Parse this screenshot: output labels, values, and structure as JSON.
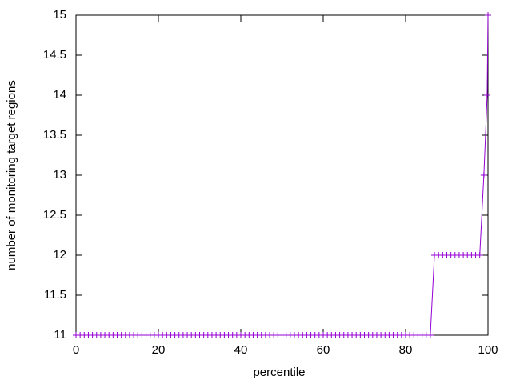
{
  "chart_data": {
    "type": "line",
    "xlabel": "percentile",
    "ylabel": "number of monitoring target regions",
    "x": [
      0,
      1,
      2,
      3,
      4,
      5,
      6,
      7,
      8,
      9,
      10,
      11,
      12,
      13,
      14,
      15,
      16,
      17,
      18,
      19,
      20,
      21,
      22,
      23,
      24,
      25,
      26,
      27,
      28,
      29,
      30,
      31,
      32,
      33,
      34,
      35,
      36,
      37,
      38,
      39,
      40,
      41,
      42,
      43,
      44,
      45,
      46,
      47,
      48,
      49,
      50,
      51,
      52,
      53,
      54,
      55,
      56,
      57,
      58,
      59,
      60,
      61,
      62,
      63,
      64,
      65,
      66,
      67,
      68,
      69,
      70,
      71,
      72,
      73,
      74,
      75,
      76,
      77,
      78,
      79,
      80,
      81,
      82,
      83,
      84,
      85,
      86,
      87,
      88,
      89,
      90,
      91,
      92,
      93,
      94,
      95,
      96,
      97,
      98,
      99,
      99.8,
      100
    ],
    "series": [
      {
        "color": "#9400d3",
        "values": [
          11,
          11,
          11,
          11,
          11,
          11,
          11,
          11,
          11,
          11,
          11,
          11,
          11,
          11,
          11,
          11,
          11,
          11,
          11,
          11,
          11,
          11,
          11,
          11,
          11,
          11,
          11,
          11,
          11,
          11,
          11,
          11,
          11,
          11,
          11,
          11,
          11,
          11,
          11,
          11,
          11,
          11,
          11,
          11,
          11,
          11,
          11,
          11,
          11,
          11,
          11,
          11,
          11,
          11,
          11,
          11,
          11,
          11,
          11,
          11,
          11,
          11,
          11,
          11,
          11,
          11,
          11,
          11,
          11,
          11,
          11,
          11,
          11,
          11,
          11,
          11,
          11,
          11,
          11,
          11,
          11,
          11,
          11,
          11,
          11,
          11,
          11,
          12,
          12,
          12,
          12,
          12,
          12,
          12,
          12,
          12,
          12,
          12,
          12,
          13,
          14,
          15
        ]
      }
    ],
    "xlim": [
      0,
      100
    ],
    "xticks": [
      0,
      20,
      40,
      60,
      80,
      100
    ],
    "ylim": [
      11,
      15
    ],
    "yticks": [
      11,
      11.5,
      12,
      12.5,
      13,
      13.5,
      14,
      14.5,
      15
    ]
  }
}
